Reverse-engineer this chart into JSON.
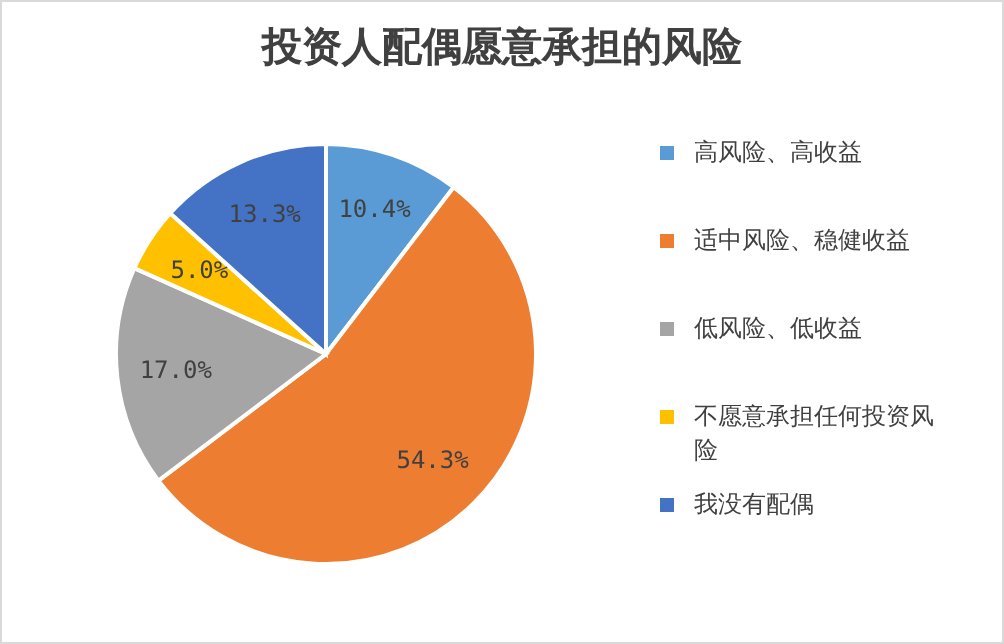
{
  "chart_data": {
    "type": "pie",
    "title": "投资人配偶愿意承担的风险",
    "categories": [
      "高风险、高收益",
      "适中风险、稳健收益",
      "低风险、低收益",
      "不愿意承担任何投资风险",
      "我没有配偶"
    ],
    "values": [
      10.4,
      54.3,
      17.0,
      5.0,
      13.3
    ],
    "value_labels": [
      "10.4%",
      "54.3%",
      "17.0%",
      "5.0%",
      "13.3%"
    ],
    "colors": [
      "#5b9bd5",
      "#ed7d31",
      "#a5a5a5",
      "#ffc000",
      "#4472c4"
    ],
    "legend": "right"
  }
}
